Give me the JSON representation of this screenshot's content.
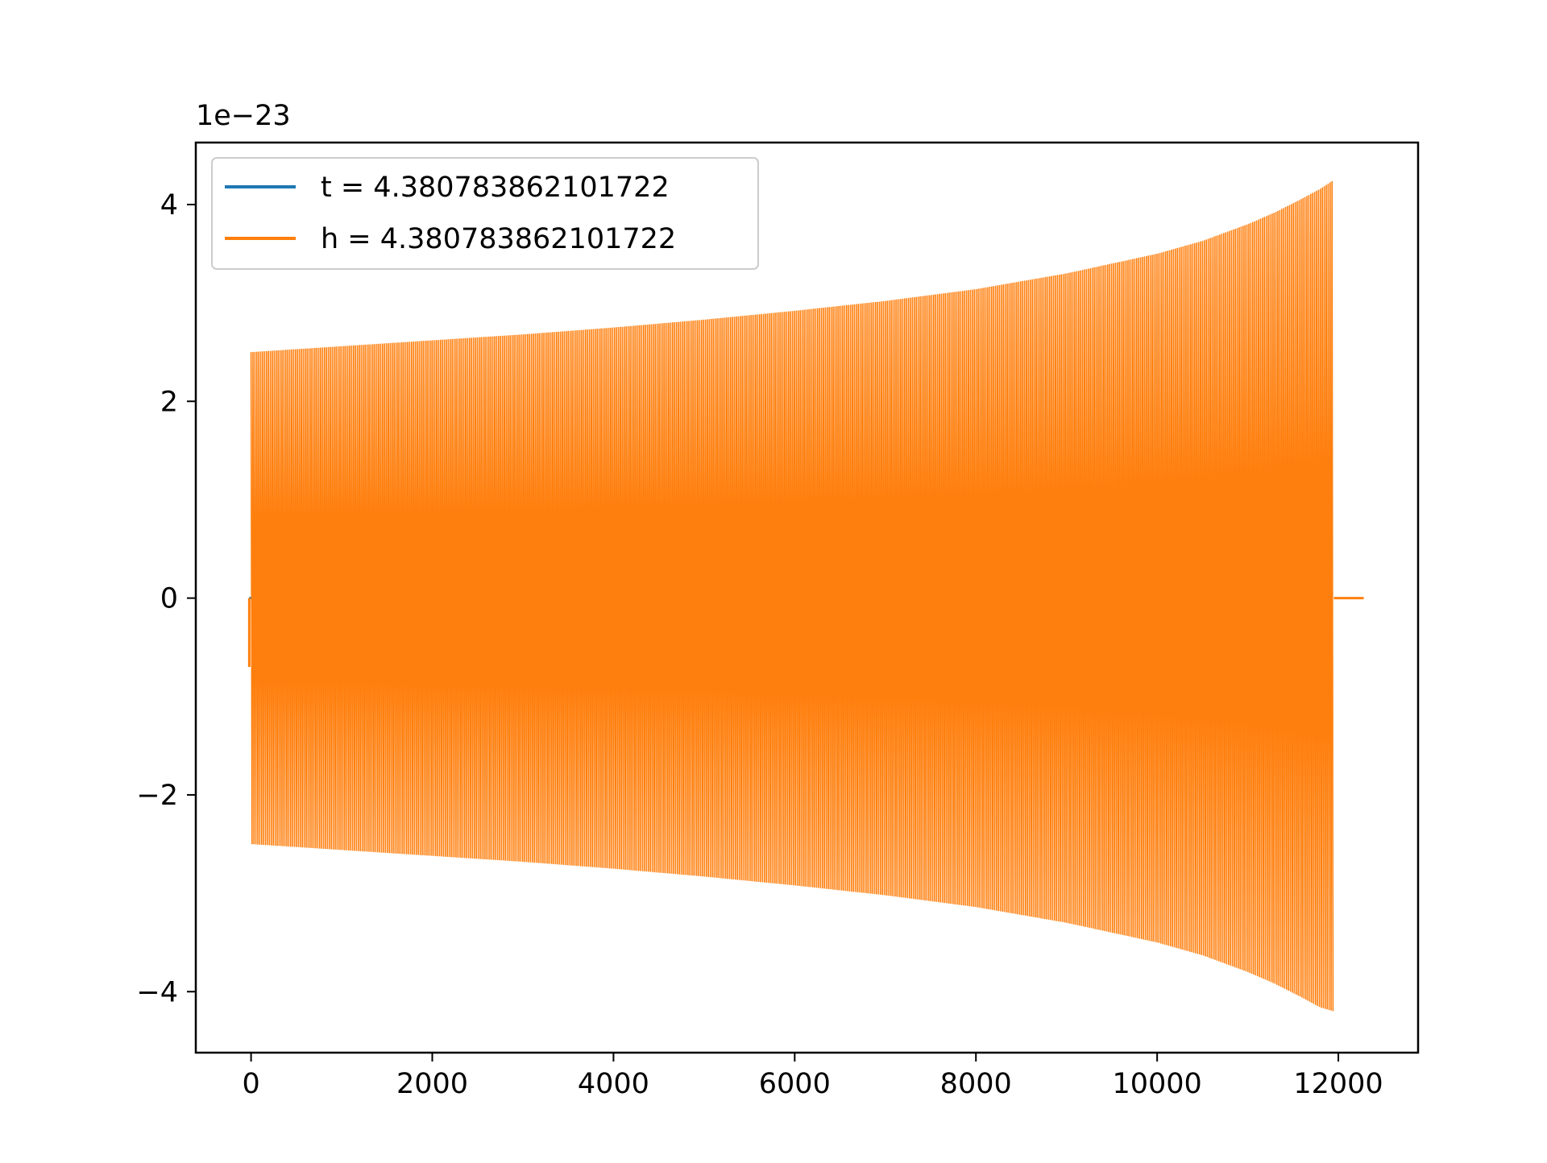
{
  "chart_data": {
    "type": "line",
    "title": "",
    "xlabel": "",
    "ylabel": "",
    "offset_text": "1e−23",
    "y_scale_exponent": -23,
    "xlim": [
      -610,
      12880
    ],
    "ylim": [
      -4.62,
      4.63
    ],
    "x_ticks": [
      0,
      2000,
      4000,
      6000,
      8000,
      10000,
      12000
    ],
    "x_tick_labels": [
      "0",
      "2000",
      "4000",
      "6000",
      "8000",
      "10000",
      "12000"
    ],
    "y_ticks": [
      -4,
      -2,
      0,
      2,
      4
    ],
    "y_tick_labels": [
      "−4",
      "−2",
      "0",
      "2",
      "4"
    ],
    "grid": false,
    "legend_position": "top-left",
    "series": [
      {
        "name": "t = 4.380783862101722",
        "color": "#1f77b4",
        "x": [
          -20,
          0
        ],
        "y": [
          0,
          0
        ]
      },
      {
        "name": "h = 4.380783862101722",
        "color": "#ff7f0e",
        "description_of_values": "rapid oscillation with growing envelope",
        "envelope_x": [
          0,
          1000,
          2000,
          3000,
          4000,
          5000,
          6000,
          7000,
          8000,
          9000,
          10000,
          10500,
          11000,
          11300,
          11600,
          11800,
          11950
        ],
        "envelope_upper": [
          2.5,
          2.56,
          2.62,
          2.68,
          2.75,
          2.83,
          2.92,
          3.02,
          3.14,
          3.3,
          3.5,
          3.63,
          3.8,
          3.92,
          4.06,
          4.16,
          4.25
        ],
        "envelope_lower": [
          -2.5,
          -2.56,
          -2.62,
          -2.68,
          -2.75,
          -2.83,
          -2.92,
          -3.02,
          -3.14,
          -3.3,
          -3.5,
          -3.63,
          -3.8,
          -3.92,
          -4.06,
          -4.16,
          -4.2
        ],
        "tail_x": [
          11950,
          12280
        ],
        "tail_y": [
          0,
          0
        ]
      }
    ]
  }
}
